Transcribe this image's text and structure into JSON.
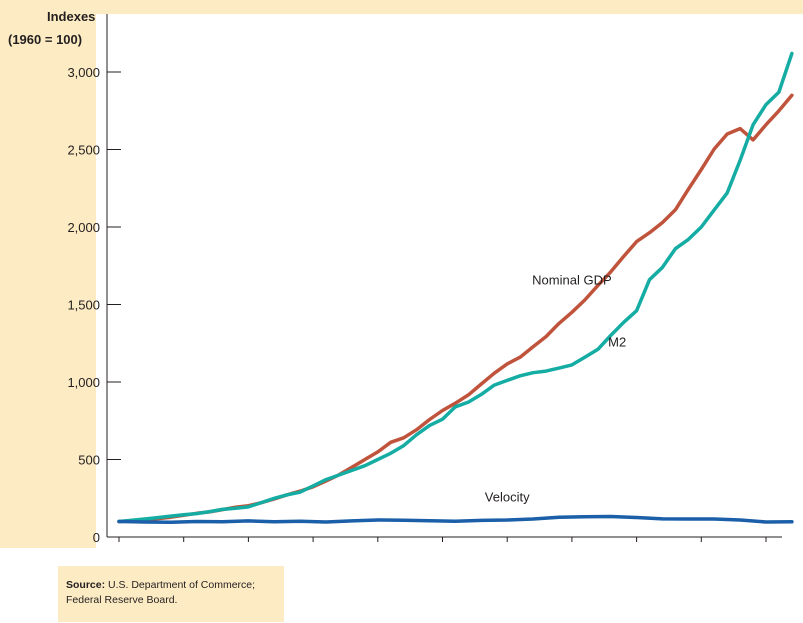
{
  "chart_data": {
    "type": "line",
    "ylabel_line1": "Indexes",
    "ylabel_line2": "(1960 = 100)",
    "xlabel": "",
    "xlim": [
      1960,
      2012
    ],
    "ylim": [
      0,
      3000
    ],
    "x_ticks": [
      1960,
      1965,
      1970,
      1975,
      1980,
      1985,
      1990,
      1995,
      2000,
      2005,
      2010
    ],
    "y_ticks": [
      0,
      500,
      1000,
      1500,
      2000,
      2500,
      3000
    ],
    "y_tick_labels": [
      "0",
      "500",
      "1,000",
      "1,500",
      "2,000",
      "2,500",
      "3,000"
    ],
    "grid": false,
    "legend": "none",
    "series": [
      {
        "name": "Nominal GDP",
        "color": "#c0533b",
        "x": [
          1960,
          1961,
          1962,
          1963,
          1964,
          1965,
          1966,
          1967,
          1968,
          1969,
          1970,
          1971,
          1972,
          1973,
          1974,
          1975,
          1976,
          1977,
          1978,
          1979,
          1980,
          1981,
          1982,
          1983,
          1984,
          1985,
          1986,
          1987,
          1988,
          1989,
          1990,
          1991,
          1992,
          1993,
          1994,
          1995,
          1996,
          1997,
          1998,
          1999,
          2000,
          2001,
          2002,
          2003,
          2004,
          2005,
          2006,
          2007,
          2008,
          2009,
          2010,
          2011,
          2012
        ],
        "values": [
          100,
          104,
          112,
          119,
          128,
          140,
          153,
          162,
          177,
          192,
          202,
          221,
          245,
          272,
          296,
          324,
          361,
          401,
          450,
          500,
          549,
          611,
          640,
          692,
          758,
          816,
          863,
          917,
          987,
          1057,
          1117,
          1160,
          1227,
          1293,
          1378,
          1450,
          1529,
          1622,
          1710,
          1810,
          1906,
          1963,
          2029,
          2111,
          2244,
          2371,
          2503,
          2600,
          2635,
          2562,
          2660,
          2750,
          2850
        ]
      },
      {
        "name": "M2",
        "color": "#14aca3",
        "x": [
          1960,
          1961,
          1962,
          1963,
          1964,
          1965,
          1966,
          1967,
          1968,
          1969,
          1970,
          1971,
          1972,
          1973,
          1974,
          1975,
          1976,
          1977,
          1978,
          1979,
          1980,
          1981,
          1982,
          1983,
          1984,
          1985,
          1986,
          1987,
          1988,
          1989,
          1990,
          1991,
          1992,
          1993,
          1994,
          1995,
          1996,
          1997,
          1998,
          1999,
          2000,
          2001,
          2002,
          2003,
          2004,
          2005,
          2006,
          2007,
          2008,
          2009,
          2010,
          2011,
          2012
        ],
        "values": [
          100,
          108,
          116,
          125,
          135,
          144,
          151,
          164,
          178,
          185,
          194,
          222,
          250,
          272,
          290,
          330,
          370,
          400,
          430,
          460,
          500,
          540,
          590,
          660,
          720,
          760,
          840,
          870,
          920,
          980,
          1010,
          1040,
          1060,
          1070,
          1090,
          1110,
          1160,
          1210,
          1300,
          1385,
          1460,
          1660,
          1740,
          1860,
          1920,
          2000,
          2110,
          2220,
          2430,
          2660,
          2790,
          2870,
          3120
        ]
      },
      {
        "name": "Velocity",
        "color": "#1a5fa8",
        "x": [
          1960,
          1962,
          1964,
          1966,
          1968,
          1970,
          1972,
          1974,
          1976,
          1978,
          1980,
          1982,
          1984,
          1986,
          1988,
          1990,
          1992,
          1994,
          1996,
          1998,
          2000,
          2002,
          2004,
          2006,
          2008,
          2010,
          2012
        ],
        "values": [
          100,
          97,
          95,
          100,
          98,
          104,
          98,
          102,
          97,
          104,
          110,
          108,
          105,
          102,
          107,
          110,
          116,
          127,
          131,
          132,
          126,
          117,
          116,
          116,
          110,
          97,
          98
        ]
      }
    ],
    "annotations": [
      {
        "text": "Nominal GDP",
        "x": 1995,
        "y": 1630
      },
      {
        "text": "M2",
        "x": 1998.5,
        "y": 1230
      },
      {
        "text": "Velocity",
        "x": 1990,
        "y": 230
      }
    ]
  },
  "source": {
    "label": "Source:",
    "text": "U.S. Department of Commerce; Federal Reserve Board."
  }
}
